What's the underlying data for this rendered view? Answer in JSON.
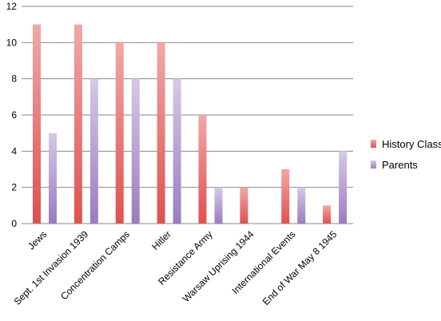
{
  "chart_data": {
    "type": "bar",
    "categories": [
      "Jews",
      "Sept. 1st Invasion 1939",
      "Concentration Camps",
      "Hitler",
      "Resistance Army",
      "Warsaw Uprising 1944",
      "International Events",
      "End of War May 8 1945"
    ],
    "series": [
      {
        "name": "History Class",
        "values": [
          11,
          11,
          10,
          10,
          6,
          2,
          3,
          1
        ],
        "color": "#e0504f",
        "color_light": "#f0a8a8"
      },
      {
        "name": "Parents",
        "values": [
          5,
          8,
          8,
          8,
          2,
          0,
          2,
          4
        ],
        "color": "#9b7cc0",
        "color_light": "#d6c9e6"
      }
    ],
    "ylim": [
      0,
      12
    ],
    "yticks": [
      0,
      2,
      4,
      6,
      8,
      10,
      12
    ],
    "grid": true,
    "legend": "right",
    "title": "",
    "xlabel": "",
    "ylabel": ""
  }
}
